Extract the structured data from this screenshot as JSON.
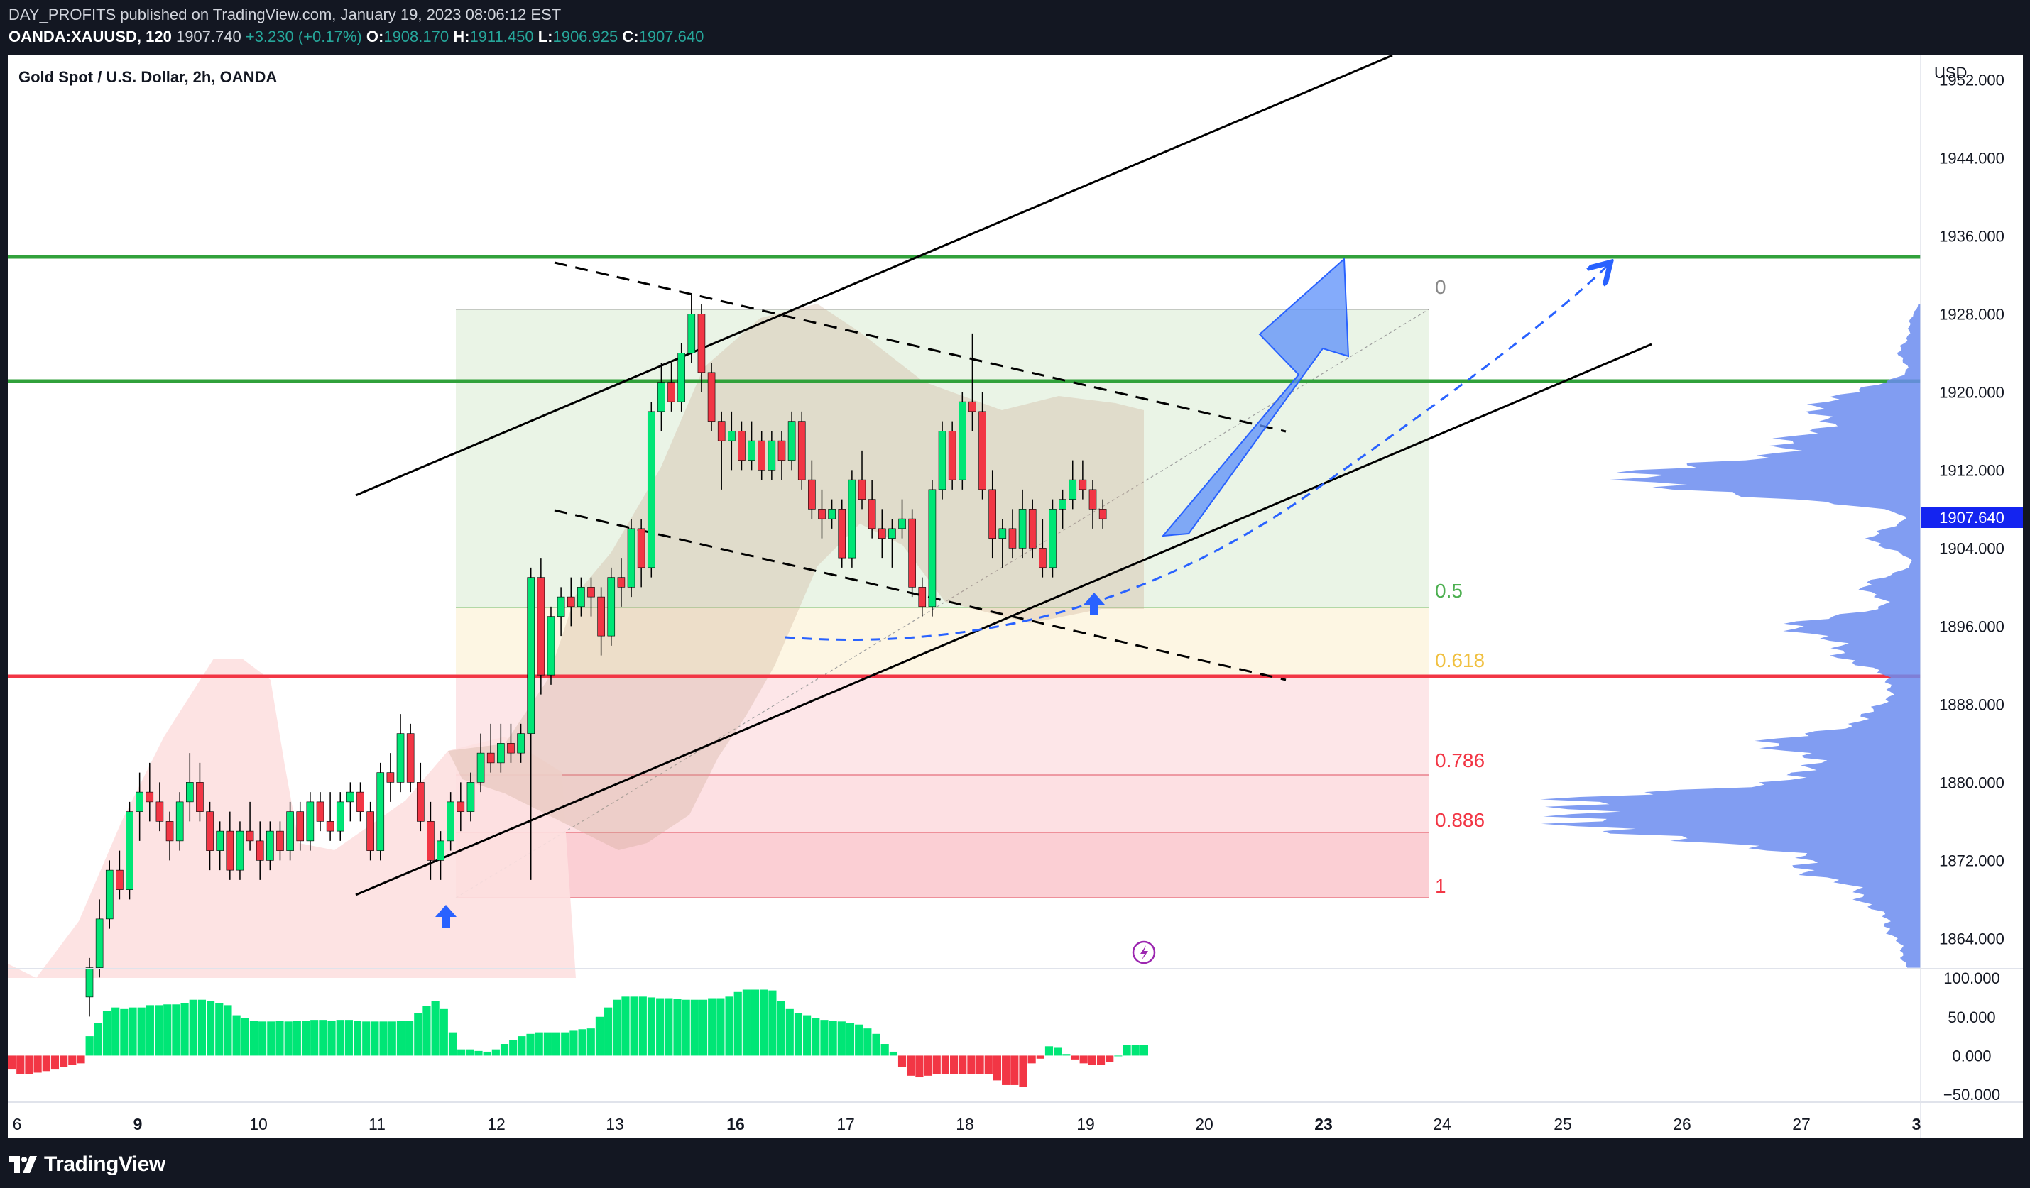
{
  "header": {
    "line1": "DAY_PROFITS published on TradingView.com, January 19, 2023 08:06:12 EST",
    "symbol": "OANDA:XAUUSD, 120",
    "last": "1907.740",
    "change": "+3.230 (+0.17%)",
    "o_label": "O:",
    "o_value": "1908.170",
    "h_label": "H:",
    "h_value": "1911.450",
    "l_label": "L:",
    "l_value": "1906.925",
    "c_label": "C:",
    "c_value": "1907.640"
  },
  "chart_title": "Gold Spot / U.S. Dollar, 2h, OANDA",
  "currency": "USD",
  "footer": {
    "brand": "TradingView"
  },
  "colors": {
    "up": "#00e676",
    "down": "#f23645",
    "support_green": "#31a13b",
    "resistance_red": "#f23645",
    "price_tag": "#1424f0",
    "profile": "#6b8cf0"
  },
  "chart_data": [
    {
      "type": "candlestick",
      "title": "Gold Spot / U.S. Dollar, 2h, OANDA",
      "ylabel": "USD",
      "ylim": [
        1860.9,
        1954.5
      ],
      "y_ticks": [
        "1952.000",
        "1944.000",
        "1936.000",
        "1928.000",
        "1920.000",
        "1912.000",
        "1904.000",
        "1896.000",
        "1888.000",
        "1880.000",
        "1872.000",
        "1864.000"
      ],
      "x_ticks": [
        {
          "label": "6",
          "bold": false
        },
        {
          "label": "9",
          "bold": true
        },
        {
          "label": "10",
          "bold": false
        },
        {
          "label": "11",
          "bold": false
        },
        {
          "label": "12",
          "bold": false
        },
        {
          "label": "13",
          "bold": false
        },
        {
          "label": "16",
          "bold": true
        },
        {
          "label": "17",
          "bold": false
        },
        {
          "label": "18",
          "bold": false
        },
        {
          "label": "19",
          "bold": false
        },
        {
          "label": "20",
          "bold": false
        },
        {
          "label": "23",
          "bold": true
        },
        {
          "label": "24",
          "bold": false
        },
        {
          "label": "25",
          "bold": false
        },
        {
          "label": "26",
          "bold": false
        },
        {
          "label": "27",
          "bold": false
        },
        {
          "label": "3",
          "bold": true
        }
      ],
      "last_price": "1907.640",
      "candles": [
        [
          1858,
          1862,
          1856,
          1861
        ],
        [
          1861,
          1868,
          1860,
          1866
        ],
        [
          1866,
          1872,
          1865,
          1871
        ],
        [
          1871,
          1873,
          1868,
          1869
        ],
        [
          1869,
          1878,
          1868,
          1877
        ],
        [
          1877,
          1881,
          1874,
          1879
        ],
        [
          1879,
          1882,
          1876,
          1878
        ],
        [
          1878,
          1880,
          1875,
          1876
        ],
        [
          1876,
          1877,
          1872,
          1874
        ],
        [
          1874,
          1879,
          1873,
          1878
        ],
        [
          1878,
          1883,
          1876,
          1880
        ],
        [
          1880,
          1882,
          1876,
          1877
        ],
        [
          1877,
          1878,
          1871,
          1873
        ],
        [
          1873,
          1876,
          1871,
          1875
        ],
        [
          1875,
          1877,
          1870,
          1871
        ],
        [
          1871,
          1876,
          1870,
          1875
        ],
        [
          1875,
          1878,
          1873,
          1874
        ],
        [
          1874,
          1876,
          1870,
          1872
        ],
        [
          1872,
          1876,
          1871,
          1875
        ],
        [
          1875,
          1876,
          1872,
          1873
        ],
        [
          1873,
          1878,
          1872,
          1877
        ],
        [
          1877,
          1878,
          1873,
          1874
        ],
        [
          1874,
          1879,
          1873,
          1878
        ],
        [
          1878,
          1879,
          1875,
          1876
        ],
        [
          1876,
          1879,
          1874,
          1875
        ],
        [
          1875,
          1879,
          1874,
          1878
        ],
        [
          1878,
          1880,
          1876,
          1879
        ],
        [
          1879,
          1880,
          1876,
          1877
        ],
        [
          1877,
          1878,
          1872,
          1873
        ],
        [
          1873,
          1882,
          1872,
          1881
        ],
        [
          1881,
          1883,
          1878,
          1880
        ],
        [
          1880,
          1887,
          1879,
          1885
        ],
        [
          1885,
          1886,
          1879,
          1880
        ],
        [
          1880,
          1882,
          1875,
          1876
        ],
        [
          1876,
          1878,
          1870,
          1872
        ],
        [
          1872,
          1875,
          1870,
          1874
        ],
        [
          1874,
          1879,
          1873,
          1878
        ],
        [
          1878,
          1880,
          1875,
          1877
        ],
        [
          1877,
          1881,
          1876,
          1880
        ],
        [
          1880,
          1885,
          1879,
          1883
        ],
        [
          1883,
          1886,
          1881,
          1882
        ],
        [
          1882,
          1886,
          1881,
          1884
        ],
        [
          1884,
          1886,
          1882,
          1883
        ],
        [
          1883,
          1886,
          1882,
          1885
        ],
        [
          1885,
          1902,
          1870,
          1901
        ],
        [
          1901,
          1903,
          1889,
          1891
        ],
        [
          1891,
          1898,
          1890,
          1897
        ],
        [
          1897,
          1900,
          1895,
          1899
        ],
        [
          1899,
          1901,
          1896,
          1898
        ],
        [
          1898,
          1901,
          1897,
          1900
        ],
        [
          1900,
          1901,
          1897,
          1899
        ],
        [
          1899,
          1900,
          1893,
          1895
        ],
        [
          1895,
          1902,
          1894,
          1901
        ],
        [
          1901,
          1903,
          1898,
          1900
        ],
        [
          1900,
          1907,
          1899,
          1906
        ],
        [
          1906,
          1907,
          1900,
          1902
        ],
        [
          1902,
          1919,
          1901,
          1918
        ],
        [
          1918,
          1923,
          1916,
          1921
        ],
        [
          1921,
          1923,
          1918,
          1919
        ],
        [
          1919,
          1925,
          1918,
          1924
        ],
        [
          1924,
          1930,
          1923,
          1928
        ],
        [
          1928,
          1929,
          1920,
          1922
        ],
        [
          1922,
          1923,
          1916,
          1917
        ],
        [
          1917,
          1918,
          1910,
          1915
        ],
        [
          1915,
          1918,
          1912,
          1916
        ],
        [
          1916,
          1917,
          1912,
          1913
        ],
        [
          1913,
          1917,
          1912,
          1915
        ],
        [
          1915,
          1916,
          1911,
          1912
        ],
        [
          1912,
          1916,
          1911,
          1915
        ],
        [
          1915,
          1916,
          1911,
          1913
        ],
        [
          1913,
          1918,
          1912,
          1917
        ],
        [
          1917,
          1918,
          1910,
          1911
        ],
        [
          1911,
          1913,
          1907,
          1908
        ],
        [
          1908,
          1910,
          1905,
          1907
        ],
        [
          1907,
          1909,
          1906,
          1908
        ],
        [
          1908,
          1909,
          1902,
          1903
        ],
        [
          1903,
          1912,
          1902,
          1911
        ],
        [
          1911,
          1914,
          1908,
          1909
        ],
        [
          1909,
          1911,
          1905,
          1906
        ],
        [
          1906,
          1908,
          1903,
          1905
        ],
        [
          1905,
          1907,
          1902,
          1906
        ],
        [
          1906,
          1909,
          1905,
          1907
        ],
        [
          1907,
          1908,
          1899,
          1900
        ],
        [
          1900,
          1901,
          1897,
          1898
        ],
        [
          1898,
          1911,
          1897,
          1910
        ],
        [
          1910,
          1917,
          1909,
          1916
        ],
        [
          1916,
          1917,
          1910,
          1911
        ],
        [
          1911,
          1920,
          1910,
          1919
        ],
        [
          1919,
          1926,
          1916,
          1918
        ],
        [
          1918,
          1920,
          1909,
          1910
        ],
        [
          1910,
          1912,
          1903,
          1905
        ],
        [
          1905,
          1907,
          1902,
          1906
        ],
        [
          1906,
          1908,
          1903,
          1904
        ],
        [
          1904,
          1910,
          1903,
          1908
        ],
        [
          1908,
          1909,
          1903,
          1904
        ],
        [
          1904,
          1907,
          1901,
          1902
        ],
        [
          1902,
          1909,
          1901,
          1908
        ],
        [
          1908,
          1910,
          1906,
          1909
        ],
        [
          1909,
          1913,
          1908,
          1911
        ],
        [
          1911,
          1913,
          1909,
          1910
        ],
        [
          1910,
          1911,
          1906,
          1908
        ],
        [
          1908,
          1909,
          1906,
          1907
        ]
      ],
      "levels": {
        "resistance_green": [
          1935.5,
          1922.6
        ],
        "support_red": 1890.7,
        "fib": [
          {
            "label": "0",
            "value": 1929.9
          },
          {
            "label": "0.5",
            "value": 1898.6
          },
          {
            "label": "0.618",
            "value": 1891.3
          },
          {
            "label": "0.786",
            "value": 1880.7
          },
          {
            "label": "0.886",
            "value": 1874.5
          },
          {
            "label": "1",
            "value": 1867.5
          }
        ]
      }
    },
    {
      "type": "bar",
      "name": "oscillator",
      "ylim": [
        -60,
        112
      ],
      "y_ticks": [
        "100.000",
        "50.000",
        "0.000",
        "−50.000"
      ],
      "values": [
        -18,
        -24,
        -24,
        -22,
        -20,
        -18,
        -15,
        -12,
        -10,
        25,
        42,
        58,
        62,
        60,
        62,
        62,
        65,
        65,
        66,
        66,
        68,
        72,
        72,
        70,
        68,
        65,
        52,
        48,
        45,
        44,
        44,
        45,
        44,
        45,
        45,
        46,
        46,
        45,
        46,
        46,
        45,
        44,
        44,
        44,
        44,
        45,
        45,
        55,
        64,
        70,
        60,
        30,
        8,
        8,
        6,
        5,
        8,
        15,
        20,
        25,
        28,
        30,
        30,
        30,
        30,
        32,
        34,
        35,
        50,
        62,
        72,
        76,
        76,
        76,
        75,
        74,
        74,
        73,
        72,
        72,
        72,
        74,
        74,
        76,
        82,
        85,
        85,
        85,
        84,
        70,
        60,
        55,
        52,
        48,
        46,
        45,
        44,
        42,
        40,
        35,
        28,
        15,
        5,
        -15,
        -26,
        -28,
        -26,
        -24,
        -24,
        -24,
        -24,
        -24,
        -24,
        -24,
        -32,
        -38,
        -38,
        -40,
        -10,
        -4,
        12,
        10,
        2,
        -5,
        -10,
        -12,
        -12,
        -8,
        0,
        14,
        14,
        14
      ]
    }
  ]
}
